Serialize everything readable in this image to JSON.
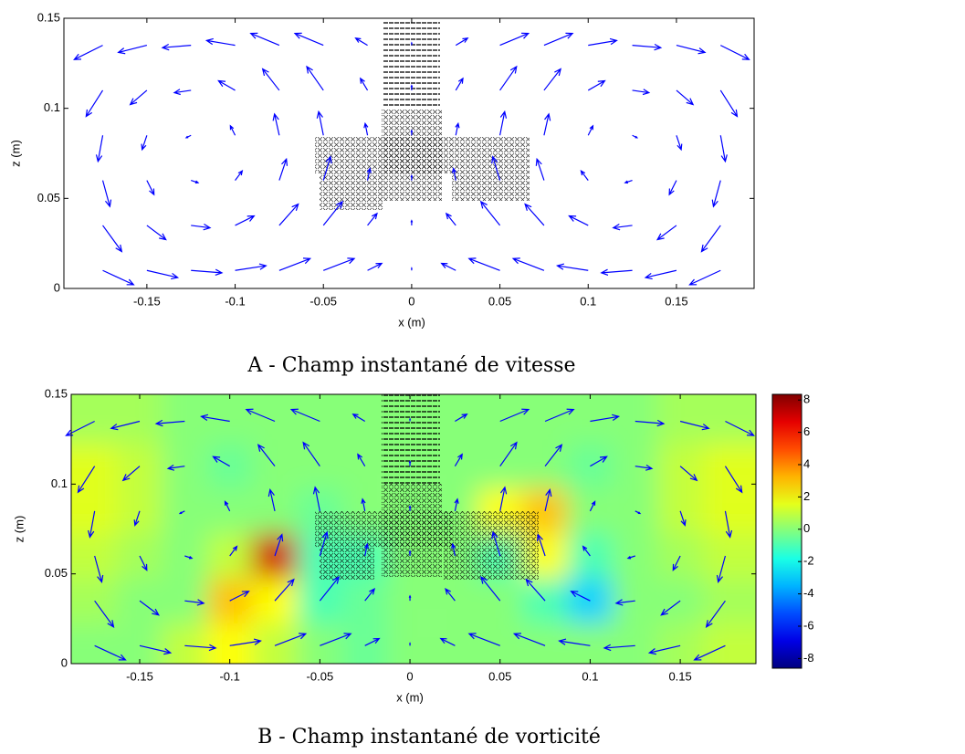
{
  "chart_data": [
    {
      "type": "quiver",
      "title": "A - Champ instantané de vitesse",
      "xlabel": "x (m)",
      "ylabel": "z (m)",
      "xlim": [
        -0.197,
        0.194
      ],
      "ylim": [
        0,
        0.15
      ],
      "xticks": [
        -0.15,
        -0.1,
        -0.05,
        0,
        0.05,
        0.1,
        0.15
      ],
      "yticks": [
        0,
        0.05,
        0.1,
        0.15
      ],
      "color": "#0000ff",
      "x": [
        -0.175,
        -0.15,
        -0.125,
        -0.1,
        -0.075,
        -0.05,
        -0.025,
        0,
        0.025,
        0.05,
        0.075,
        0.1,
        0.125,
        0.15,
        0.175
      ],
      "z": [
        0.01,
        0.035,
        0.06,
        0.085,
        0.11,
        0.135
      ],
      "u": [
        [
          0.13,
          0.13,
          0.13,
          0.13,
          0.13,
          0.13,
          0.06,
          0,
          -0.06,
          -0.13,
          -0.13,
          -0.13,
          -0.13,
          -0.13,
          -0.13
        ],
        [
          0.08,
          0.08,
          0.08,
          0.08,
          0.08,
          0.08,
          0.04,
          0,
          -0.04,
          -0.08,
          -0.08,
          -0.08,
          -0.08,
          -0.08,
          -0.08
        ],
        [
          0.03,
          0.03,
          0.03,
          0.03,
          0.03,
          0.03,
          0.01,
          0,
          -0.01,
          -0.03,
          -0.03,
          -0.03,
          -0.03,
          -0.03,
          -0.03
        ],
        [
          -0.02,
          -0.02,
          -0.02,
          -0.02,
          -0.02,
          -0.02,
          -0.01,
          0,
          0.01,
          0.02,
          0.02,
          0.02,
          0.02,
          0.02,
          0.02
        ],
        [
          -0.07,
          -0.07,
          -0.07,
          -0.07,
          -0.07,
          -0.07,
          -0.03,
          0,
          0.03,
          0.07,
          0.07,
          0.07,
          0.07,
          0.07,
          0.07
        ],
        [
          -0.12,
          -0.12,
          -0.12,
          -0.12,
          -0.12,
          -0.12,
          -0.05,
          0,
          0.05,
          0.12,
          0.12,
          0.12,
          0.12,
          0.12,
          0.12
        ]
      ],
      "w": [
        [
          -0.06,
          -0.03,
          -0.01,
          0.02,
          0.05,
          0.05,
          0.03,
          0.01,
          0.03,
          0.05,
          0.05,
          0.02,
          -0.01,
          -0.03,
          -0.06
        ],
        [
          -0.11,
          -0.06,
          -0.01,
          0.04,
          0.09,
          0.1,
          0.05,
          0.02,
          0.05,
          0.1,
          0.09,
          0.04,
          -0.01,
          -0.06,
          -0.11
        ],
        [
          -0.11,
          -0.06,
          -0.01,
          0.04,
          0.09,
          0.1,
          0.05,
          0.02,
          0.05,
          0.1,
          0.09,
          0.04,
          -0.01,
          -0.06,
          -0.11
        ],
        [
          -0.11,
          -0.06,
          -0.01,
          0.04,
          0.09,
          0.1,
          0.05,
          0.02,
          0.05,
          0.1,
          0.09,
          0.04,
          -0.01,
          -0.06,
          -0.11
        ],
        [
          -0.11,
          -0.06,
          -0.01,
          0.04,
          0.09,
          0.1,
          0.05,
          0.02,
          0.05,
          0.1,
          0.09,
          0.04,
          -0.01,
          -0.06,
          -0.11
        ],
        [
          -0.06,
          -0.03,
          -0.01,
          0.02,
          0.05,
          0.05,
          0.03,
          0.01,
          0.03,
          0.05,
          0.05,
          0.02,
          -0.01,
          -0.03,
          -0.06
        ]
      ]
    },
    {
      "type": "quiver_heatmap",
      "title": "B - Champ instantané de vorticité",
      "xlabel": "x (m)",
      "ylabel": "z (m)",
      "xlim": [
        -0.188,
        0.192
      ],
      "ylim": [
        0,
        0.15
      ],
      "xticks": [
        -0.15,
        -0.1,
        -0.05,
        0,
        0.05,
        0.1,
        0.15
      ],
      "yticks": [
        0,
        0.05,
        0.1,
        0.15
      ],
      "color": "#0000ff",
      "colormap": "jet",
      "clim": [
        -8.6,
        8.35
      ],
      "cticks": [
        -8,
        -6,
        -4,
        -2,
        0,
        2,
        4,
        6,
        8
      ],
      "x": [
        -0.175,
        -0.15,
        -0.125,
        -0.1,
        -0.075,
        -0.05,
        -0.025,
        0,
        0.025,
        0.05,
        0.075,
        0.1,
        0.125,
        0.15,
        0.175
      ],
      "z": [
        0.01,
        0.035,
        0.06,
        0.085,
        0.11,
        0.135
      ],
      "u": [
        [
          0.13,
          0.13,
          0.13,
          0.13,
          0.13,
          0.13,
          0.06,
          0,
          -0.06,
          -0.13,
          -0.13,
          -0.13,
          -0.13,
          -0.13,
          -0.13
        ],
        [
          0.08,
          0.08,
          0.08,
          0.08,
          0.08,
          0.08,
          0.04,
          0,
          -0.04,
          -0.08,
          -0.08,
          -0.08,
          -0.08,
          -0.08,
          -0.08
        ],
        [
          0.03,
          0.03,
          0.03,
          0.03,
          0.03,
          0.03,
          0.01,
          0,
          -0.01,
          -0.03,
          -0.03,
          -0.03,
          -0.03,
          -0.03,
          -0.03
        ],
        [
          -0.02,
          -0.02,
          -0.02,
          -0.02,
          -0.02,
          -0.02,
          -0.01,
          0,
          0.01,
          0.02,
          0.02,
          0.02,
          0.02,
          0.02,
          0.02
        ],
        [
          -0.07,
          -0.07,
          -0.07,
          -0.07,
          -0.07,
          -0.07,
          -0.03,
          0,
          0.03,
          0.07,
          0.07,
          0.07,
          0.07,
          0.07,
          0.07
        ],
        [
          -0.12,
          -0.12,
          -0.12,
          -0.12,
          -0.12,
          -0.12,
          -0.05,
          0,
          0.05,
          0.12,
          0.12,
          0.12,
          0.12,
          0.12,
          0.12
        ]
      ],
      "w": [
        [
          -0.06,
          -0.03,
          -0.01,
          0.02,
          0.05,
          0.05,
          0.03,
          0.01,
          0.03,
          0.05,
          0.05,
          0.02,
          -0.01,
          -0.03,
          -0.06
        ],
        [
          -0.11,
          -0.06,
          -0.01,
          0.04,
          0.09,
          0.1,
          0.05,
          0.02,
          0.05,
          0.1,
          0.09,
          0.04,
          -0.01,
          -0.06,
          -0.11
        ],
        [
          -0.11,
          -0.06,
          -0.01,
          0.04,
          0.09,
          0.1,
          0.05,
          0.02,
          0.05,
          0.1,
          0.09,
          0.04,
          -0.01,
          -0.06,
          -0.11
        ],
        [
          -0.11,
          -0.06,
          -0.01,
          0.04,
          0.09,
          0.1,
          0.05,
          0.02,
          0.05,
          0.1,
          0.09,
          0.04,
          -0.01,
          -0.06,
          -0.11
        ],
        [
          -0.11,
          -0.06,
          -0.01,
          0.04,
          0.09,
          0.1,
          0.05,
          0.02,
          0.05,
          0.1,
          0.09,
          0.04,
          -0.01,
          -0.06,
          -0.11
        ],
        [
          -0.06,
          -0.03,
          -0.01,
          0.02,
          0.05,
          0.05,
          0.03,
          0.01,
          0.03,
          0.05,
          0.05,
          0.02,
          -0.01,
          -0.03,
          -0.06
        ]
      ],
      "vorticity": [
        [
          0,
          0,
          1,
          2,
          1,
          0,
          -0.5,
          0,
          0,
          0,
          0,
          0,
          0,
          0.5,
          1
        ],
        [
          0.5,
          0,
          0,
          3,
          2,
          -1,
          -0.5,
          0,
          0,
          0,
          -1,
          -3,
          0,
          0,
          0.5
        ],
        [
          1,
          0.5,
          0,
          1,
          7,
          -1,
          -1,
          0,
          0,
          -1,
          2,
          -1,
          0,
          0.5,
          1
        ],
        [
          1.5,
          1,
          0,
          0,
          0,
          -0.5,
          0,
          0,
          0,
          2,
          3,
          0,
          0,
          1,
          1.5
        ],
        [
          1.5,
          1,
          0,
          -0.5,
          0,
          0,
          0,
          0,
          0,
          0,
          0,
          -0.5,
          0,
          1,
          1.5
        ],
        [
          0.5,
          0.5,
          0,
          0,
          0,
          0,
          0,
          0,
          0,
          0,
          0,
          0,
          0,
          0.5,
          0.5
        ]
      ]
    }
  ]
}
